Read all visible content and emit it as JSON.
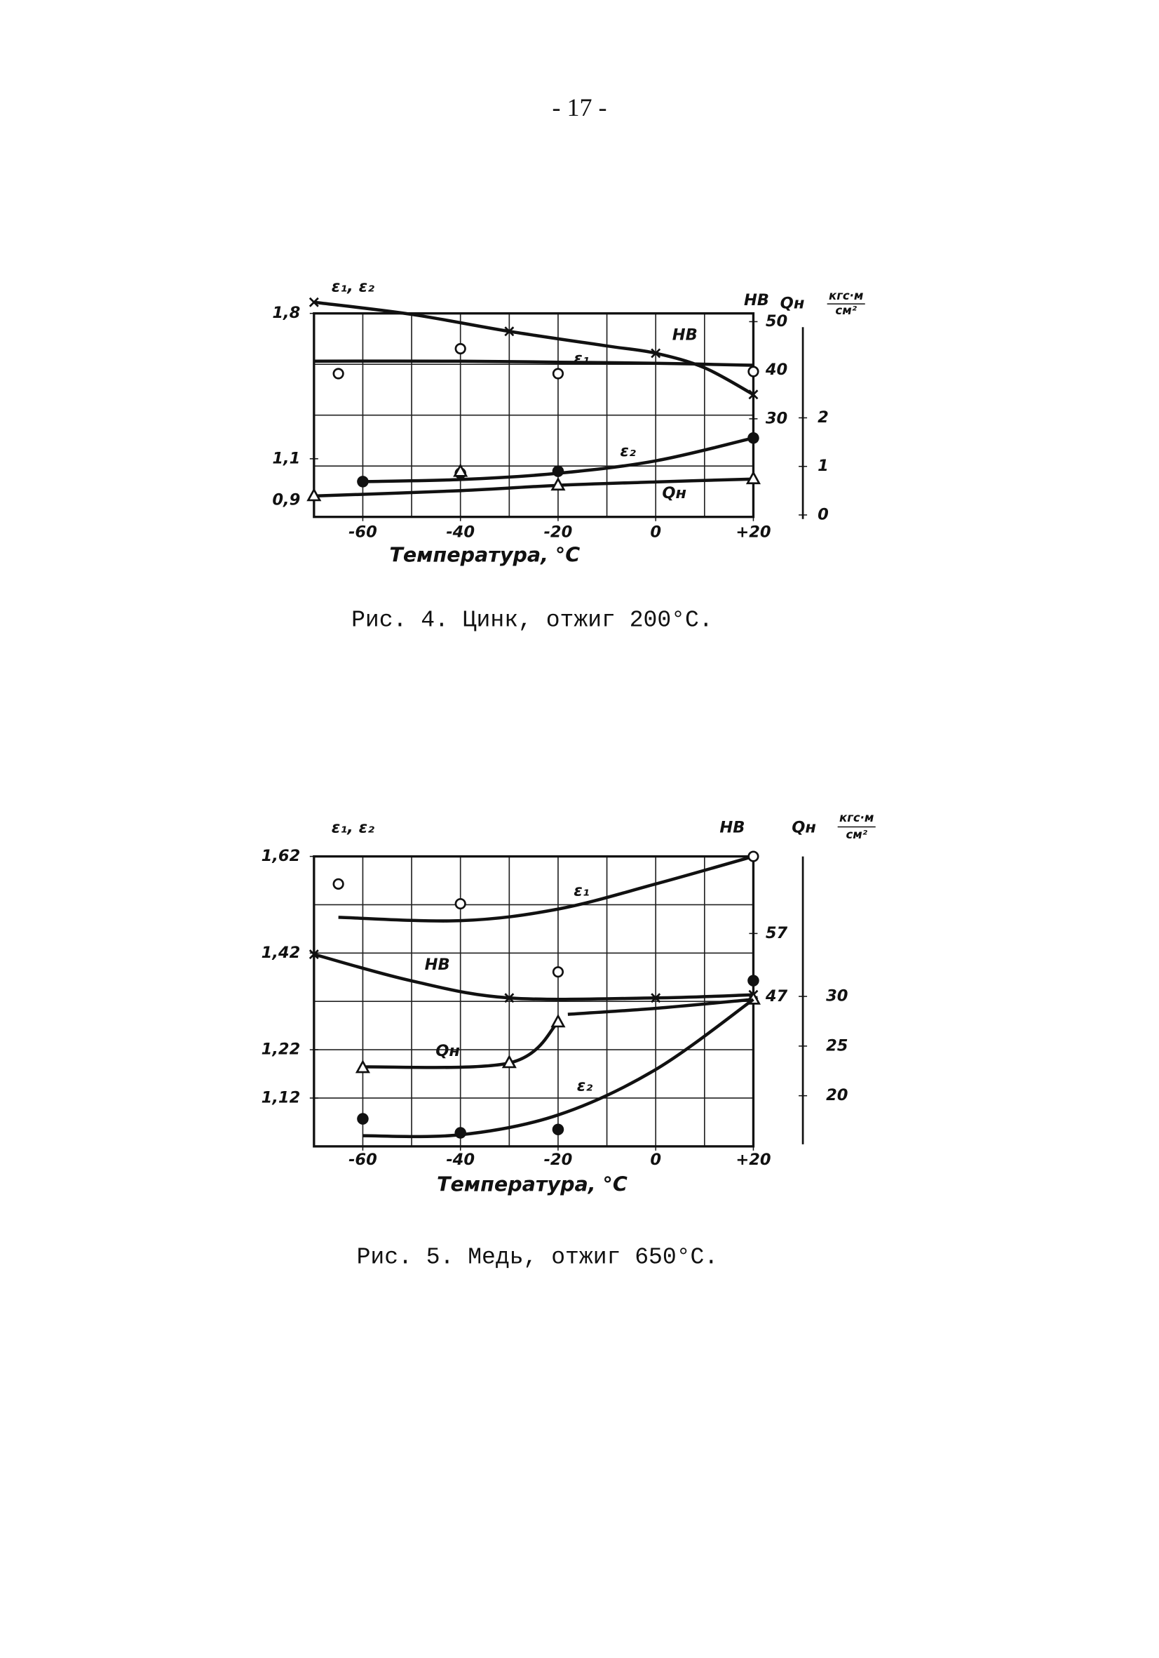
{
  "page_number": "- 17 -",
  "chart_data": [
    {
      "type": "line",
      "caption": "Рис. 4. Цинк, отжиг 200°С.",
      "xlabel": "Температура, °С",
      "ylabel": "ε₁, ε₂",
      "y2label": "HB",
      "y3label": "Qн",
      "y3unit_top": "кгс·м",
      "y3unit_bottom": "см²",
      "xlim": [
        -70,
        20
      ],
      "xticks": [
        -60,
        -40,
        -20,
        0,
        {
          "value": 20,
          "label": "+20"
        }
      ],
      "ylim": [
        0.82,
        1.8
      ],
      "yticks": [
        {
          "value": 1.8,
          "label": "1,8"
        },
        {
          "value": 1.1,
          "label": "1,1"
        },
        {
          "value": 0.9,
          "label": "0,9"
        }
      ],
      "y2lim": [
        9.8,
        51.7
      ],
      "y2ticks": [
        50,
        40,
        30
      ],
      "y3lim": [
        -0.04,
        4.15
      ],
      "y3ticks": [
        2,
        1,
        0
      ],
      "series": [
        {
          "name": "HB",
          "color": "#111111",
          "marker": "cross",
          "axis": "y2",
          "x": [
            -70,
            -30,
            0,
            20
          ],
          "values": [
            54,
            48,
            43.5,
            35
          ],
          "curve_x": [
            -70,
            -50,
            -30,
            -10,
            0,
            10,
            20
          ],
          "curve_values": [
            54,
            51.5,
            48,
            45,
            43.5,
            40.5,
            35
          ]
        },
        {
          "name": "ε₁",
          "color": "#111111",
          "marker": "open",
          "axis": "y",
          "x": [
            -65,
            -40,
            -20,
            20
          ],
          "values": [
            1.51,
            1.63,
            1.51,
            1.52
          ],
          "curve_x": [
            -70,
            -40,
            -20,
            0,
            20
          ],
          "curve_values": [
            1.57,
            1.57,
            1.565,
            1.56,
            1.55
          ]
        },
        {
          "name": "ε₂",
          "color": "#111111",
          "marker": "filled",
          "axis": "y",
          "x": [
            -60,
            -40,
            -20,
            20
          ],
          "values": [
            0.99,
            1.03,
            1.04,
            1.2
          ],
          "curve_x": [
            -60,
            -40,
            -20,
            0,
            20
          ],
          "curve_values": [
            0.99,
            1.0,
            1.03,
            1.09,
            1.2
          ]
        },
        {
          "name": "Qн",
          "color": "#111111",
          "marker": "triangle",
          "axis": "y3",
          "x": [
            -70,
            -40,
            -20,
            20
          ],
          "values": [
            0.39,
            0.89,
            0.61,
            0.74
          ],
          "curve_x": [
            -70,
            -40,
            -20,
            0,
            20
          ],
          "curve_values": [
            0.39,
            0.5,
            0.61,
            0.68,
            0.74
          ]
        }
      ]
    },
    {
      "type": "line",
      "caption": "Рис. 5. Медь, отжиг 650°С.",
      "xlabel": "Температура, °С",
      "ylabel": "ε₁, ε₂",
      "y2label": "HB",
      "y3label": "Qн",
      "y3unit_top": "кгс·м",
      "y3unit_bottom": "см²",
      "xlim": [
        -70,
        20
      ],
      "xticks": [
        -60,
        -40,
        -20,
        0,
        {
          "value": 20,
          "label": "+20"
        }
      ],
      "ylim": [
        1.02,
        1.62
      ],
      "yticks": [
        {
          "value": 1.62,
          "label": "1,62"
        },
        {
          "value": 1.42,
          "label": "1,42"
        },
        {
          "value": 1.22,
          "label": "1,22"
        },
        {
          "value": 1.12,
          "label": "1,12"
        }
      ],
      "y2lim": [
        23.3,
        69.2
      ],
      "y2ticks": [
        57,
        47
      ],
      "y3lim": [
        14.9,
        44.1
      ],
      "y3ticks": [
        30,
        25,
        20
      ],
      "series": [
        {
          "name": "ε₁",
          "color": "#111111",
          "marker": "open",
          "axis": "y",
          "x": [
            -65,
            -40,
            -20,
            20
          ],
          "values": [
            1.563,
            1.522,
            1.381,
            1.62
          ],
          "curve_x": [
            -65,
            -40,
            -20,
            0,
            20
          ],
          "curve_values": [
            1.494,
            1.487,
            1.511,
            1.563,
            1.62
          ]
        },
        {
          "name": "HB",
          "color": "#111111",
          "marker": "cross",
          "axis": "y2",
          "x": [
            -70,
            -30,
            0,
            20
          ],
          "values": [
            53.7,
            46.8,
            46.8,
            47.3
          ],
          "curve_x": [
            -70,
            -50,
            -30,
            0,
            20
          ],
          "curve_values": [
            53.7,
            49.5,
            46.8,
            46.8,
            47.3
          ]
        },
        {
          "name": "Qн",
          "color": "#111111",
          "marker": "triangle",
          "axis": "y3",
          "x": [
            -60,
            -30,
            -20,
            20
          ],
          "values": [
            22.8,
            23.3,
            27.4,
            29.7
          ],
          "curve_x": [
            -60,
            -30,
            -20,
            -19,
            -18,
            0,
            20
          ],
          "curve_values": [
            22.9,
            23.3,
            27.4,
            null,
            28.2,
            28.8,
            29.7
          ]
        },
        {
          "name": "ε₂",
          "color": "#111111",
          "marker": "filled",
          "axis": "y",
          "x": [
            -60,
            -40,
            -20,
            20
          ],
          "values": [
            1.077,
            1.048,
            1.055,
            1.363
          ],
          "curve_x": [
            -60,
            -40,
            -20,
            0,
            20
          ],
          "curve_values": [
            1.042,
            1.044,
            1.085,
            1.179,
            1.324
          ]
        }
      ]
    }
  ]
}
